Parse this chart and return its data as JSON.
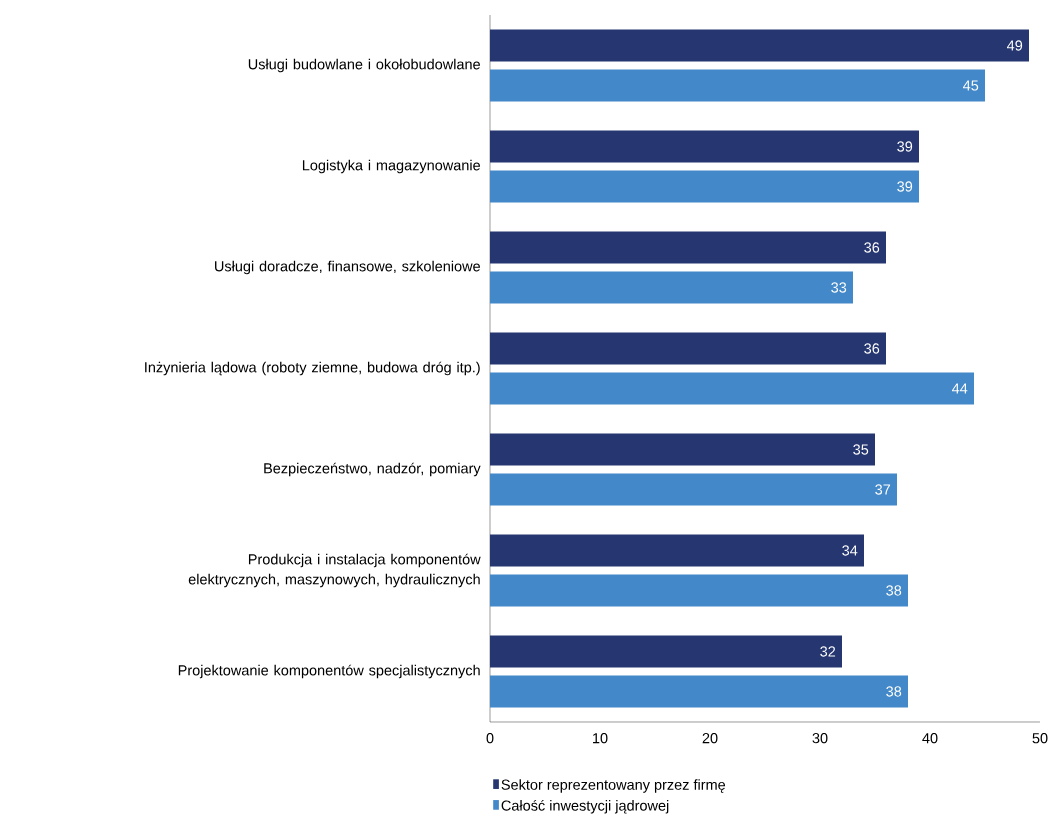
{
  "chart_data": {
    "type": "bar",
    "orientation": "horizontal",
    "categories": [
      "Usługi budowlane i okołobudowlane",
      "Logistyka i magazynowanie",
      "Usługi doradcze, finansowe, szkoleniowe",
      "Inżynieria lądowa (roboty ziemne, budowa dróg itp.)",
      "Bezpieczeństwo, nadzór, pomiary",
      "Produkcja i instalacja komponentów elektrycznych, maszynowych, hydraulicznych",
      "Projektowanie komponentów specjalistycznych"
    ],
    "series": [
      {
        "name": "Sektor reprezentowany przez firmę",
        "color": "#253670",
        "values": [
          49,
          39,
          36,
          36,
          35,
          34,
          32
        ]
      },
      {
        "name": "Całość inwestycji jądrowej",
        "color": "#4388c8",
        "values": [
          45,
          39,
          33,
          44,
          37,
          38,
          38
        ]
      }
    ],
    "xlim": [
      0,
      50
    ],
    "xticks": [
      0,
      10,
      20,
      30,
      40,
      50
    ],
    "data_labels": true,
    "grid": false,
    "legend": "bottom left"
  }
}
